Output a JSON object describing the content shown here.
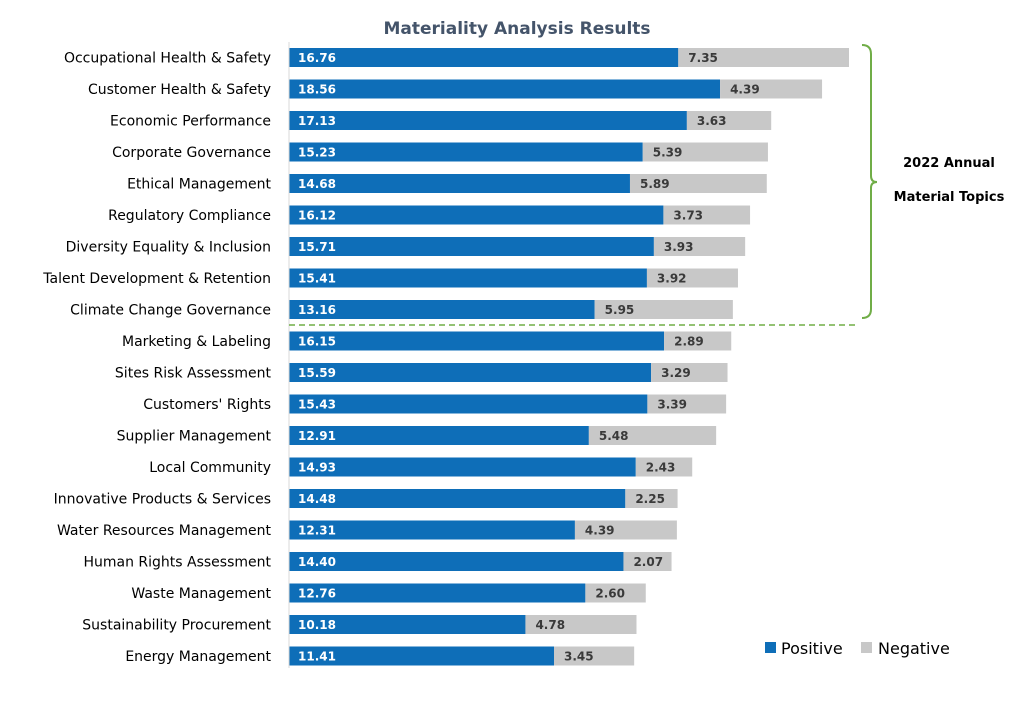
{
  "chart_data": {
    "type": "bar",
    "orientation": "horizontal",
    "stacked": true,
    "title": "Materiality Analysis Results",
    "categories": [
      "Occupational Health & Safety",
      "Customer Health & Safety",
      "Economic Performance",
      "Corporate Governance",
      "Ethical Management",
      "Regulatory Compliance",
      "Diversity Equality & Inclusion",
      "Talent Development & Retention",
      "Climate Change Governance",
      "Marketing & Labeling",
      "Sites Risk Assessment",
      "Customers' Rights",
      "Supplier Management",
      "Local Community",
      "Innovative Products & Services",
      "Water Resources Management",
      "Human Rights Assessment",
      "Waste Management",
      "Sustainability Procurement",
      "Energy Management"
    ],
    "series": [
      {
        "name": "Positive",
        "color": "#0E6EB8",
        "values": [
          16.76,
          18.56,
          17.13,
          15.23,
          14.68,
          16.12,
          15.71,
          15.41,
          13.16,
          16.15,
          15.59,
          15.43,
          12.91,
          14.93,
          14.48,
          12.31,
          14.4,
          12.76,
          10.18,
          11.41
        ],
        "labels": [
          "16.76",
          "18.56",
          "17.13",
          "15.23",
          "14.68",
          "16.12",
          "15.71",
          "15.41",
          "13.16",
          "16.15",
          "15.59",
          "15.43",
          "12.91",
          "14.93",
          "14.48",
          "12.31",
          "14.40",
          "12.76",
          "10.18",
          "11.41"
        ]
      },
      {
        "name": "Negative",
        "color": "#C8C8C8",
        "values": [
          7.35,
          4.39,
          3.63,
          5.39,
          5.89,
          3.73,
          3.93,
          3.92,
          5.95,
          2.89,
          3.29,
          3.39,
          5.48,
          2.43,
          2.25,
          4.39,
          2.07,
          2.6,
          4.78,
          3.45
        ],
        "labels": [
          "7.35",
          "4.39",
          "3.63",
          "5.39",
          "5.89",
          "3.73",
          "3.93",
          "3.92",
          "5.95",
          "2.89",
          "3.29",
          "3.39",
          "5.48",
          "2.43",
          "2.25",
          "4.39",
          "2.07",
          "2.60",
          "4.78",
          "3.45"
        ]
      }
    ],
    "xlim": [
      0,
      24.11
    ],
    "grid": false,
    "legend_position": "bottom-right",
    "annotation": {
      "lines": [
        "2022 Annual",
        "Material Topics"
      ],
      "group_size": 9,
      "bracket_color": "#70AD47",
      "separator_color": "#70AD47"
    }
  }
}
